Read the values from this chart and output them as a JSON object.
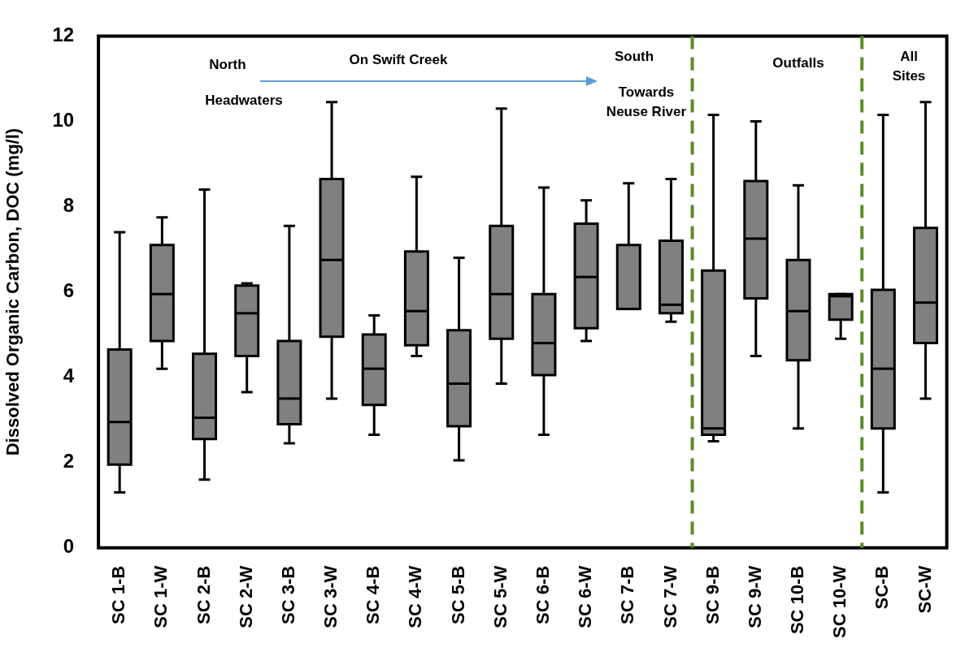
{
  "chart_data": {
    "type": "box",
    "ylabel": "Dissolved Organic Carbon, DOC (mg/l)",
    "categories": [
      "SC 1-B",
      "SC 1-W",
      "SC 2-B",
      "SC 2-W",
      "SC 3-B",
      "SC 3-W",
      "SC 4-B",
      "SC 4-W",
      "SC 5-B",
      "SC 5-W",
      "SC 6-B",
      "SC 6-W",
      "SC 7-B",
      "SC 7-W",
      "SC 9-B",
      "SC 9-W",
      "SC 10-B",
      "SC 10-W",
      "SC-B",
      "SC-W"
    ],
    "series": [
      {
        "color": "#808080",
        "boxes": [
          {
            "low": 1.3,
            "q1": 1.95,
            "median": 2.95,
            "q3": 4.65,
            "high": 7.4
          },
          {
            "low": 4.2,
            "q1": 4.85,
            "median": 5.95,
            "q3": 7.1,
            "high": 7.75
          },
          {
            "low": 1.6,
            "q1": 2.55,
            "median": 3.05,
            "q3": 4.55,
            "high": 8.4
          },
          {
            "low": 3.65,
            "q1": 4.5,
            "median": 5.5,
            "q3": 6.15,
            "high": 6.2
          },
          {
            "low": 2.45,
            "q1": 2.9,
            "median": 3.5,
            "q3": 4.85,
            "high": 7.55
          },
          {
            "low": 3.5,
            "q1": 4.95,
            "median": 6.75,
            "q3": 8.65,
            "high": 10.45
          },
          {
            "low": 2.65,
            "q1": 3.35,
            "median": 4.2,
            "q3": 5.0,
            "high": 5.45
          },
          {
            "low": 4.5,
            "q1": 4.75,
            "median": 5.55,
            "q3": 6.95,
            "high": 8.7
          },
          {
            "low": 2.05,
            "q1": 2.85,
            "median": 3.85,
            "q3": 5.1,
            "high": 6.8
          },
          {
            "low": 3.85,
            "q1": 4.9,
            "median": 5.95,
            "q3": 7.55,
            "high": 10.3
          },
          {
            "low": 2.65,
            "q1": 4.05,
            "median": 4.8,
            "q3": 5.95,
            "high": 8.45
          },
          {
            "low": 4.85,
            "q1": 5.15,
            "median": 6.35,
            "q3": 7.6,
            "high": 8.15
          },
          {
            "low": 5.6,
            "q1": 5.6,
            "median": 5.6,
            "q3": 7.1,
            "high": 8.55
          },
          {
            "low": 5.3,
            "q1": 5.5,
            "median": 5.7,
            "q3": 7.2,
            "high": 8.65
          },
          {
            "low": 2.5,
            "q1": 2.65,
            "median": 2.8,
            "q3": 6.5,
            "high": 10.15
          },
          {
            "low": 4.5,
            "q1": 5.85,
            "median": 7.25,
            "q3": 8.6,
            "high": 10.0
          },
          {
            "low": 2.8,
            "q1": 4.4,
            "median": 5.55,
            "q3": 6.75,
            "high": 8.5
          },
          {
            "low": 4.9,
            "q1": 5.35,
            "median": 5.9,
            "q3": 5.95,
            "high": 5.95
          },
          {
            "low": 1.3,
            "q1": 2.8,
            "median": 4.2,
            "q3": 6.05,
            "high": 10.15
          },
          {
            "low": 3.5,
            "q1": 4.8,
            "median": 5.75,
            "q3": 7.5,
            "high": 10.45
          }
        ]
      }
    ],
    "ylim": [
      0,
      12
    ],
    "yticks": [
      0,
      2,
      4,
      6,
      8,
      10,
      12
    ],
    "grid": false,
    "annotations": [
      "North",
      "Headwaters",
      "On Swift Creek",
      "South",
      "Towards\nNeuse River",
      "Outfalls",
      "All\nSites"
    ]
  }
}
